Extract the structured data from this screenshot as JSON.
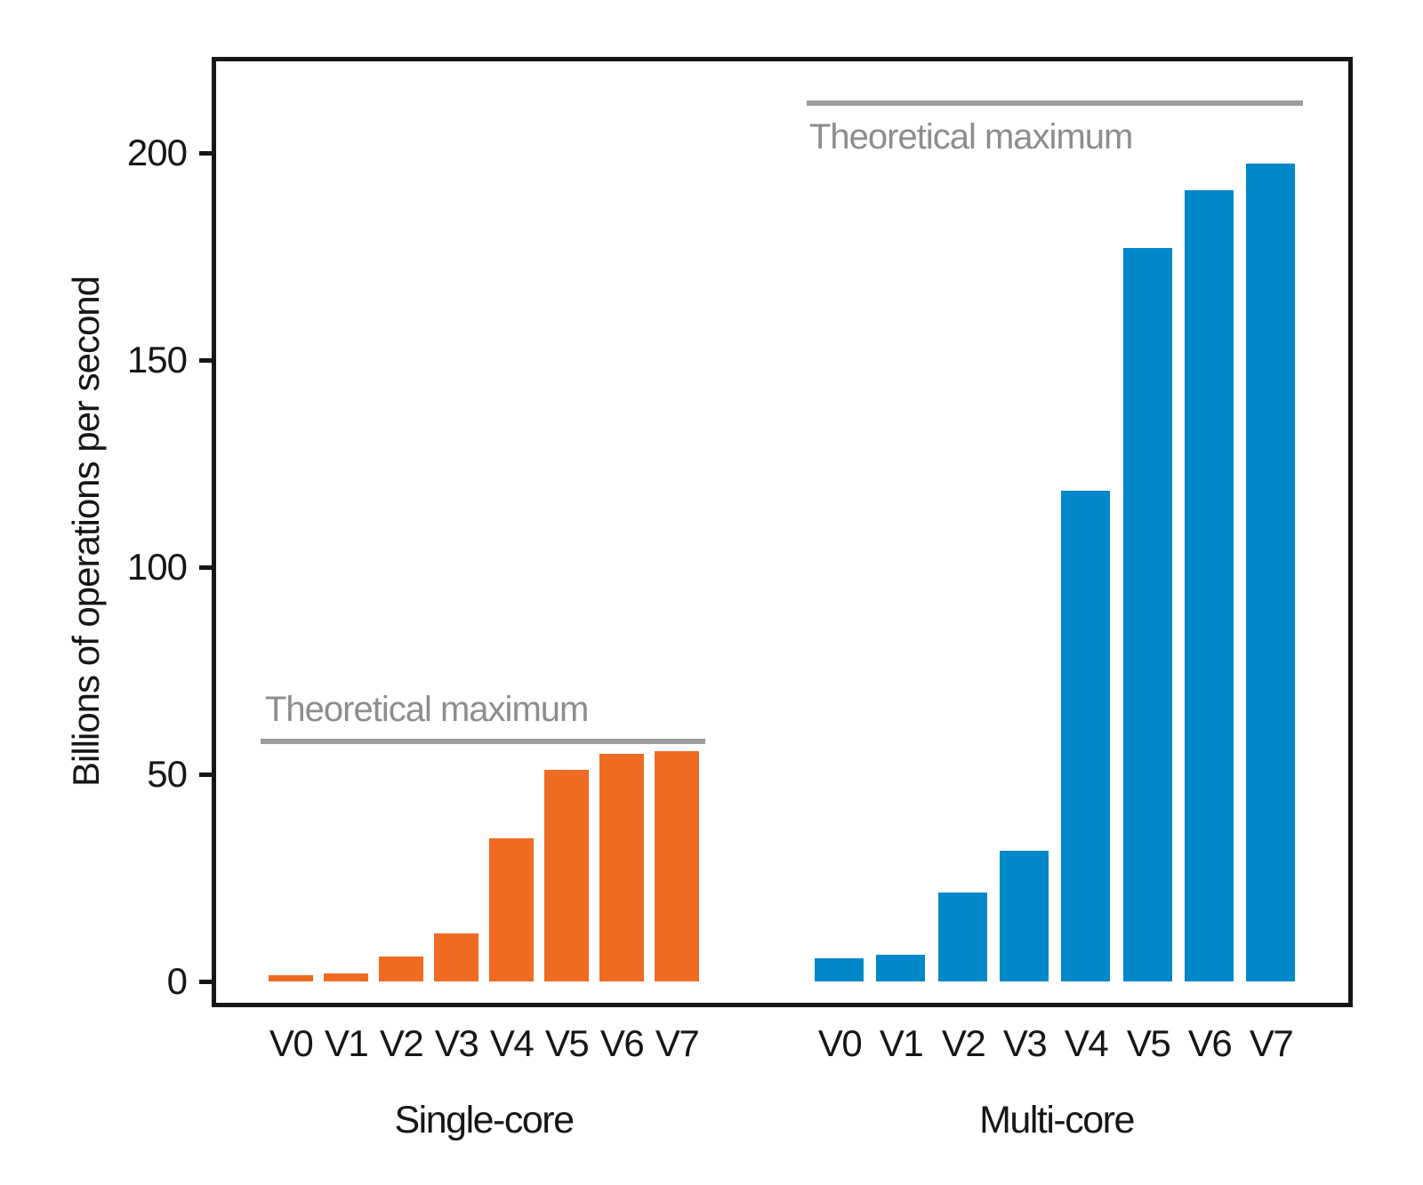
{
  "chart_data": {
    "type": "bar",
    "title": "",
    "ylabel": "Billions of operations per second",
    "xlabel": "",
    "categories": [
      "V0",
      "V1",
      "V2",
      "V3",
      "V4",
      "V5",
      "V6",
      "V7"
    ],
    "yticks": [
      0,
      50,
      100,
      150,
      200
    ],
    "ylim": [
      -5.5,
      222
    ],
    "grid": false,
    "legend": "none",
    "annotation_color": "#8D8D8D",
    "max_line_color": "#9C9C9C",
    "axis_color": "#161616",
    "groups": [
      {
        "name": "Single-core",
        "color": "#F06B22",
        "values": [
          1.6,
          1.9,
          6,
          11.5,
          34.5,
          51,
          55,
          55.5
        ],
        "theoretical_max": 58,
        "annotation": "Theoretical maximum",
        "annotation_position": "above-line"
      },
      {
        "name": "Multi-core",
        "color": "#0088C8",
        "values": [
          5.5,
          6.5,
          21.5,
          31.5,
          118.5,
          177,
          191,
          197.5
        ],
        "theoretical_max": 212,
        "annotation": "Theoretical maximum",
        "annotation_position": "below-line"
      }
    ]
  }
}
